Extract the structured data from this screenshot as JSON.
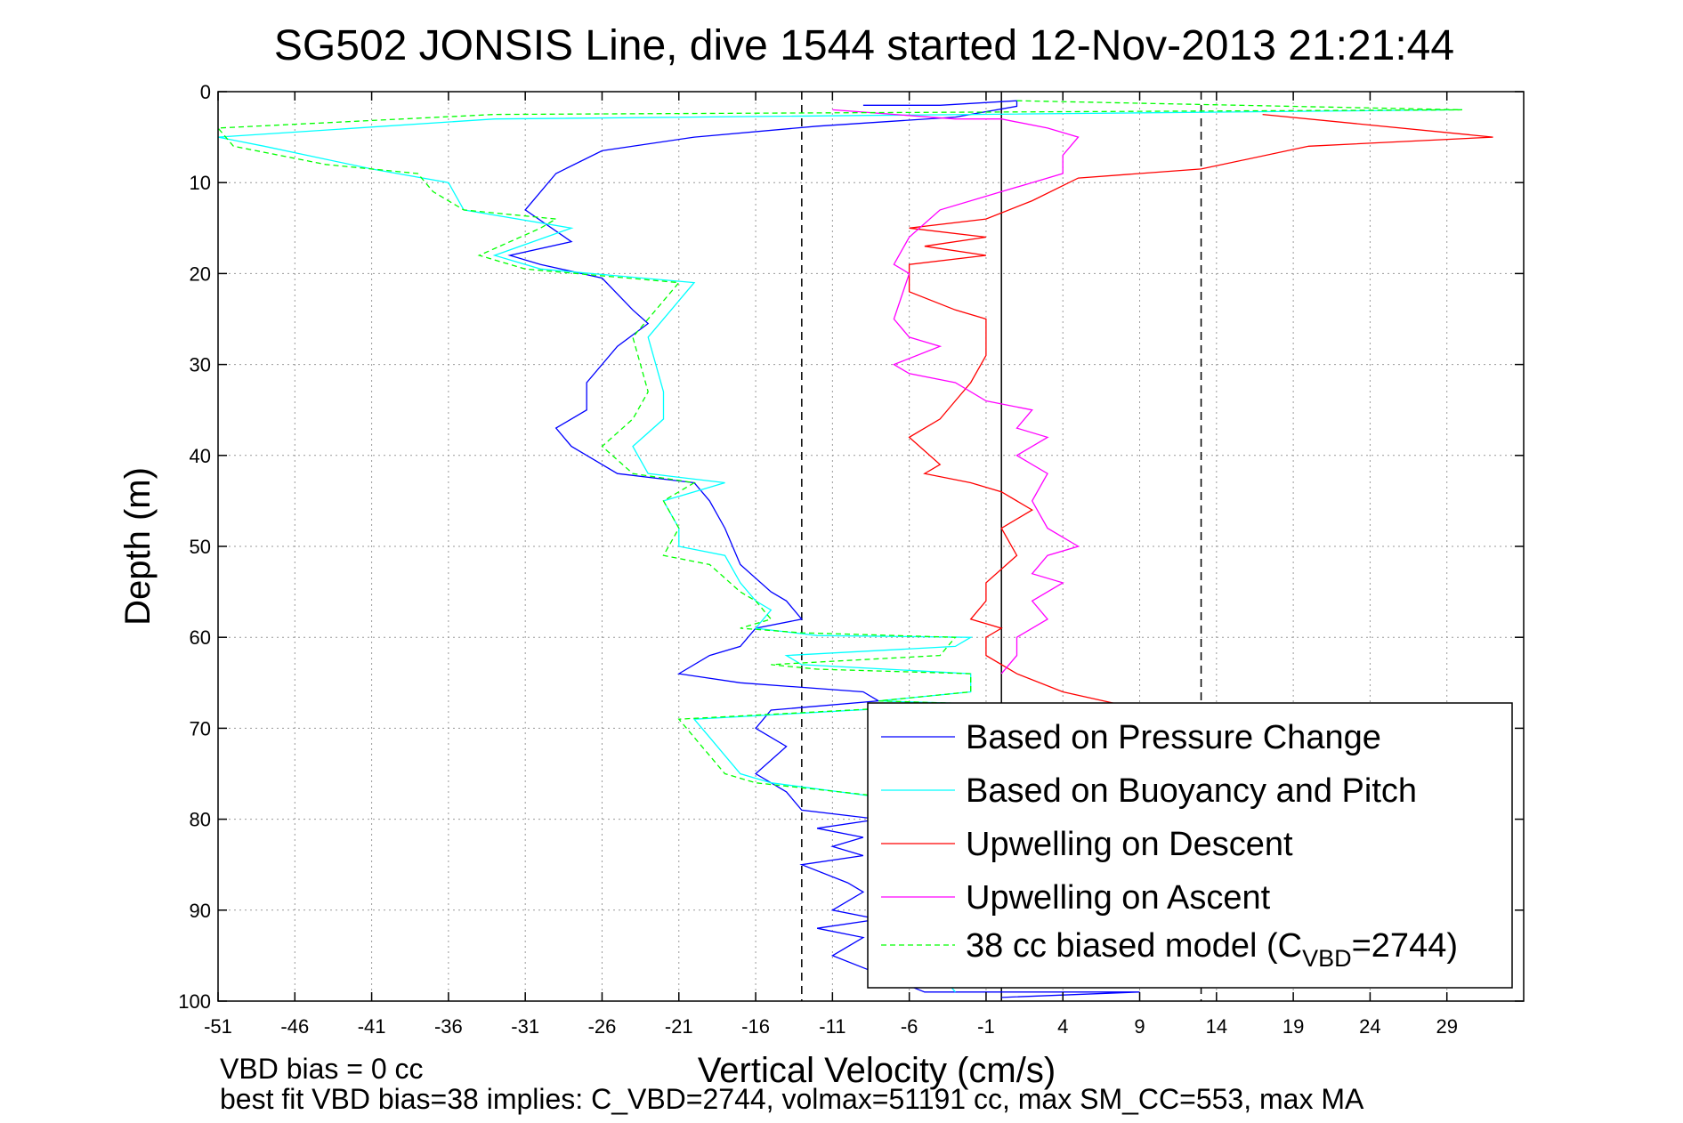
{
  "chart_data": {
    "type": "line",
    "title": "SG502 JONSIS Line, dive 1544 started 12-Nov-2013 21:21:44",
    "xlabel": "Vertical Velocity (cm/s)",
    "ylabel": "Depth (m)",
    "xlim": [
      -51,
      34
    ],
    "ylim": [
      0,
      100
    ],
    "y_reversed": true,
    "grid": true,
    "x_ticks": [
      "-51",
      "-46",
      "-41",
      "-36",
      "-31",
      "-26",
      "-21",
      "-16",
      "-11",
      "-6",
      "-1",
      "4",
      "9",
      "14",
      "19",
      "24",
      "29"
    ],
    "y_ticks": [
      "0",
      "10",
      "20",
      "30",
      "40",
      "50",
      "60",
      "70",
      "80",
      "90",
      "100"
    ],
    "legend": {
      "location": "bottom-right"
    },
    "reference_lines": [
      {
        "x": -13,
        "style": "dashed",
        "color": "#000000"
      },
      {
        "x": 0,
        "style": "solid",
        "color": "#000000"
      },
      {
        "x": 13,
        "style": "dashed",
        "color": "#000000"
      }
    ],
    "footer_lines": [
      "VBD bias = 0 cc",
      "best fit VBD bias=38 implies: C_VBD=2744, volmax=51191 cc, max SM_CC=553, max MA"
    ],
    "series": [
      {
        "name": "Based on Pressure Change",
        "color": "#0000ff",
        "style": "solid",
        "points": [
          [
            -9,
            1.5
          ],
          [
            -4,
            1.5
          ],
          [
            1,
            1
          ],
          [
            1,
            1.6
          ],
          [
            -3,
            2.8
          ],
          [
            -12,
            3.8
          ],
          [
            -20,
            5
          ],
          [
            -26,
            6.5
          ],
          [
            -29,
            9
          ],
          [
            -31,
            13
          ],
          [
            -28,
            16.5
          ],
          [
            -32,
            18
          ],
          [
            -30,
            19
          ],
          [
            -26,
            20.5
          ],
          [
            -24,
            24
          ],
          [
            -23,
            25.5
          ],
          [
            -25,
            28
          ],
          [
            -27,
            32
          ],
          [
            -27,
            35
          ],
          [
            -29,
            37
          ],
          [
            -28,
            39
          ],
          [
            -25,
            42
          ],
          [
            -20,
            43
          ],
          [
            -19,
            45
          ],
          [
            -18,
            48
          ],
          [
            -17,
            52
          ],
          [
            -15,
            55
          ],
          [
            -14,
            56
          ],
          [
            -13,
            58
          ],
          [
            -16,
            59
          ],
          [
            -17,
            61
          ],
          [
            -19,
            62
          ],
          [
            -21,
            64
          ],
          [
            -17,
            65
          ],
          [
            -9,
            66
          ],
          [
            -8,
            67
          ],
          [
            -15,
            68
          ],
          [
            -16,
            70
          ],
          [
            -14,
            72
          ],
          [
            -16,
            75
          ],
          [
            -14,
            77
          ],
          [
            -13,
            79
          ],
          [
            -8,
            80
          ],
          [
            -12,
            81
          ],
          [
            -9,
            82
          ],
          [
            -11,
            83
          ],
          [
            -9,
            84
          ],
          [
            -13,
            85
          ],
          [
            -10,
            87
          ],
          [
            -9,
            88
          ],
          [
            -11,
            90
          ],
          [
            -8,
            91
          ],
          [
            -12,
            92
          ],
          [
            -9,
            93
          ],
          [
            -11,
            95
          ],
          [
            -8,
            97
          ],
          [
            -5,
            99
          ],
          [
            9,
            99
          ],
          [
            0,
            99.6
          ]
        ]
      },
      {
        "name": "Based on Buoyancy and Pitch",
        "color": "#00ffff",
        "style": "solid",
        "points": [
          [
            30,
            2
          ],
          [
            -33,
            3
          ],
          [
            -51,
            5
          ],
          [
            -48,
            6
          ],
          [
            -41,
            8.5
          ],
          [
            -36,
            10
          ],
          [
            -35,
            13
          ],
          [
            -28,
            15
          ],
          [
            -33,
            18
          ],
          [
            -30,
            19.5
          ],
          [
            -20,
            21
          ],
          [
            -23,
            27
          ],
          [
            -22,
            33
          ],
          [
            -22,
            36
          ],
          [
            -24,
            39
          ],
          [
            -23,
            42
          ],
          [
            -18,
            43
          ],
          [
            -22,
            45
          ],
          [
            -21,
            48
          ],
          [
            -21,
            50
          ],
          [
            -18,
            51
          ],
          [
            -17,
            54
          ],
          [
            -16,
            56
          ],
          [
            -15,
            57
          ],
          [
            -16,
            59
          ],
          [
            -12,
            59.8
          ],
          [
            -2,
            60
          ],
          [
            -3,
            61
          ],
          [
            -14,
            62
          ],
          [
            -13,
            63
          ],
          [
            -2,
            64
          ],
          [
            -2,
            66
          ],
          [
            -8,
            67
          ],
          [
            -2,
            67.3
          ],
          [
            -20,
            69
          ],
          [
            -19,
            71
          ],
          [
            -18,
            73
          ],
          [
            -17,
            75
          ],
          [
            -15,
            76
          ],
          [
            -6,
            78
          ],
          [
            -5,
            80
          ],
          [
            -6,
            85
          ],
          [
            -4,
            90
          ],
          [
            -5,
            95
          ],
          [
            -3,
            99
          ]
        ]
      },
      {
        "name": "Upwelling on Descent",
        "color": "#ff0000",
        "style": "solid",
        "points": [
          [
            17,
            2.5
          ],
          [
            32,
            5
          ],
          [
            20,
            6
          ],
          [
            13,
            8.5
          ],
          [
            5,
            9.5
          ],
          [
            2,
            12
          ],
          [
            -1,
            14
          ],
          [
            -6,
            15
          ],
          [
            -1,
            16
          ],
          [
            -5,
            17
          ],
          [
            -1,
            18
          ],
          [
            -6,
            19
          ],
          [
            -6,
            22
          ],
          [
            -3,
            24
          ],
          [
            -1,
            25
          ],
          [
            -1,
            29
          ],
          [
            -2,
            32
          ],
          [
            -3,
            34
          ],
          [
            -4,
            36
          ],
          [
            -6,
            38
          ],
          [
            -4,
            41
          ],
          [
            -5,
            42
          ],
          [
            -2,
            43
          ],
          [
            0,
            44
          ],
          [
            2,
            46
          ],
          [
            0,
            48
          ],
          [
            1,
            51
          ],
          [
            -1,
            54
          ],
          [
            -1,
            56
          ],
          [
            -2,
            58
          ],
          [
            0,
            59
          ],
          [
            -1,
            60
          ],
          [
            -1,
            62
          ],
          [
            1,
            64
          ],
          [
            4,
            66
          ],
          [
            8,
            67.5
          ]
        ]
      },
      {
        "name": "Upwelling on Ascent",
        "color": "#ff00ff",
        "style": "solid",
        "points": [
          [
            -11,
            2
          ],
          [
            -3,
            3
          ],
          [
            0,
            3
          ],
          [
            3,
            4
          ],
          [
            5,
            5
          ],
          [
            4,
            7
          ],
          [
            4,
            9
          ],
          [
            2,
            10
          ],
          [
            0,
            11
          ],
          [
            -4,
            13
          ],
          [
            -6,
            16
          ],
          [
            -7,
            19
          ],
          [
            -6,
            20
          ],
          [
            -7,
            25
          ],
          [
            -6,
            27
          ],
          [
            -4,
            28
          ],
          [
            -7,
            30
          ],
          [
            -6,
            31
          ],
          [
            -3,
            32
          ],
          [
            -1,
            34
          ],
          [
            2,
            35
          ],
          [
            1,
            37
          ],
          [
            3,
            38
          ],
          [
            1,
            40
          ],
          [
            3,
            42
          ],
          [
            2,
            45
          ],
          [
            3,
            48
          ],
          [
            5,
            50
          ],
          [
            3,
            51
          ],
          [
            2,
            53
          ],
          [
            4,
            54
          ],
          [
            2,
            56
          ],
          [
            3,
            58
          ],
          [
            1,
            60
          ],
          [
            1,
            62
          ],
          [
            0,
            64
          ]
        ]
      },
      {
        "name": "38 cc biased model (C_VBD=2744)",
        "legend_label_main": "38 cc biased model (C",
        "legend_label_sub": "VBD",
        "legend_label_tail": "=2744)",
        "color": "#00ff00",
        "style": "dashed",
        "points": [
          [
            1,
            1
          ],
          [
            30,
            2
          ],
          [
            -33,
            2.5
          ],
          [
            -51,
            4
          ],
          [
            -50,
            6
          ],
          [
            -44,
            8
          ],
          [
            -38,
            9
          ],
          [
            -37,
            11
          ],
          [
            -35,
            13
          ],
          [
            -29,
            14
          ],
          [
            -30,
            15
          ],
          [
            -34,
            18
          ],
          [
            -31,
            19.5
          ],
          [
            -21,
            21
          ],
          [
            -24,
            27
          ],
          [
            -23,
            33
          ],
          [
            -24,
            36
          ],
          [
            -26,
            39
          ],
          [
            -24,
            42
          ],
          [
            -20,
            43
          ],
          [
            -22,
            45
          ],
          [
            -21,
            48
          ],
          [
            -22,
            51
          ],
          [
            -19,
            52
          ],
          [
            -17,
            55
          ],
          [
            -16,
            56
          ],
          [
            -15,
            58
          ],
          [
            -17,
            59
          ],
          [
            -13,
            59.5
          ],
          [
            -3,
            60
          ],
          [
            -4,
            62
          ],
          [
            -15,
            63
          ],
          [
            -12,
            63.5
          ],
          [
            -2,
            64
          ],
          [
            -2,
            66
          ],
          [
            -8,
            67
          ],
          [
            -2,
            67.3
          ],
          [
            -21,
            69
          ],
          [
            -20,
            71
          ],
          [
            -19,
            73
          ],
          [
            -18,
            75
          ],
          [
            -16,
            76
          ],
          [
            -5,
            78
          ],
          [
            -4,
            80
          ],
          [
            -5,
            85
          ],
          [
            -4,
            90
          ],
          [
            -5,
            95
          ]
        ]
      }
    ]
  }
}
